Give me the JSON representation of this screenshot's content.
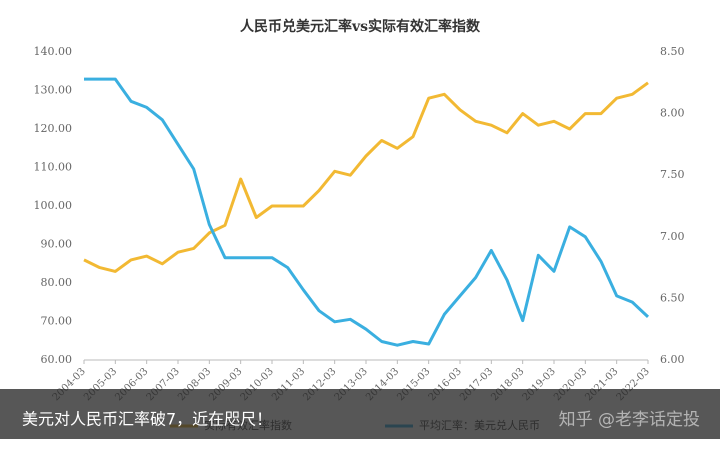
{
  "chart_data": {
    "type": "line",
    "title": "人民币兑美元汇率vs实际有效汇率指数",
    "categories": [
      "2004-03",
      null,
      "2005-03",
      null,
      "2006-03",
      null,
      "2007-03",
      null,
      "2008-03",
      null,
      "2009-03",
      null,
      "2010-03",
      null,
      "2011-03",
      null,
      "2012-03",
      null,
      "2013-03",
      null,
      "2014-03",
      null,
      "2015-03",
      null,
      "2016-03",
      null,
      "2017-03",
      null,
      "2018-03",
      null,
      "2019-03",
      null,
      "2020-03",
      null,
      "2021-03",
      null,
      "2022-03"
    ],
    "series": [
      {
        "name": "实际有效汇率指数",
        "color": "#f2b933",
        "axis": "y",
        "values": [
          86,
          84,
          83,
          86,
          87,
          85,
          88,
          89,
          93,
          95,
          107,
          97,
          100,
          100,
          100,
          104,
          109,
          108,
          113,
          117,
          115,
          118,
          128,
          129,
          125,
          122,
          121,
          119,
          124,
          121,
          122,
          120,
          124,
          124,
          128,
          129,
          132
        ]
      },
      {
        "name": "平均汇率：美元兑人民币",
        "color": "#3aafe0",
        "axis": "y2",
        "values": [
          8.28,
          8.28,
          8.28,
          8.1,
          8.05,
          7.95,
          7.75,
          7.55,
          7.1,
          6.83,
          6.83,
          6.83,
          6.83,
          6.75,
          6.57,
          6.4,
          6.31,
          6.33,
          6.25,
          6.15,
          6.12,
          6.15,
          6.13,
          6.37,
          6.52,
          6.67,
          6.89,
          6.65,
          6.32,
          6.85,
          6.72,
          7.08,
          7.0,
          6.8,
          6.52,
          6.47,
          6.35
        ]
      }
    ],
    "ylim": [
      60,
      140
    ],
    "yticks": [
      {
        "value": 60,
        "label": "60.00"
      },
      {
        "value": 70,
        "label": "70.00"
      },
      {
        "value": 80,
        "label": "80.00"
      },
      {
        "value": 90,
        "label": "90.00"
      },
      {
        "value": 100,
        "label": "100.00"
      },
      {
        "value": 110,
        "label": "110.00"
      },
      {
        "value": 120,
        "label": "120.00"
      },
      {
        "value": 130,
        "label": "130.00"
      },
      {
        "value": 140,
        "label": "140.00"
      }
    ],
    "y2lim": [
      6,
      8.5
    ],
    "y2ticks": [
      {
        "value": 6,
        "label": "6.00"
      },
      {
        "value": 6.5,
        "label": "6.50"
      },
      {
        "value": 7,
        "label": "7.00"
      },
      {
        "value": 7.5,
        "label": "7.50"
      },
      {
        "value": 8,
        "label": "8.00"
      },
      {
        "value": 8.5,
        "label": "8.50"
      }
    ],
    "caption": "美元对人民币汇率破7，近在咫尺！",
    "watermark": "知乎 @老李话定投"
  }
}
